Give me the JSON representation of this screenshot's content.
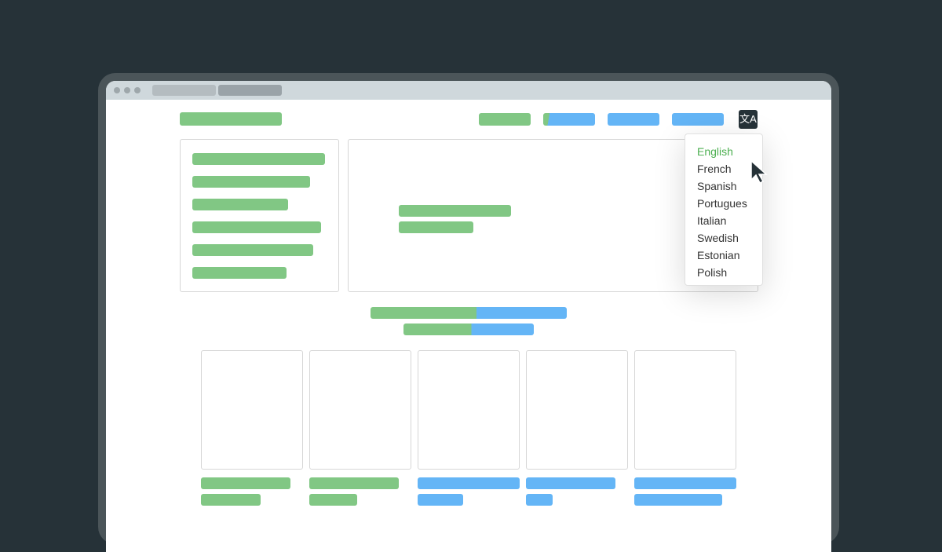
{
  "colors": {
    "background": "#263238",
    "placeholder_green": "#81c784",
    "placeholder_blue": "#64b5f6",
    "selected_language": "#4caf50"
  },
  "header": {
    "translate_icon": "translate-icon"
  },
  "language_menu": {
    "selected": "English",
    "items": [
      {
        "label": "English"
      },
      {
        "label": "French"
      },
      {
        "label": "Spanish"
      },
      {
        "label": "Portugues"
      },
      {
        "label": "Italian"
      },
      {
        "label": "Swedish"
      },
      {
        "label": "Estonian"
      },
      {
        "label": "Polish"
      }
    ]
  }
}
